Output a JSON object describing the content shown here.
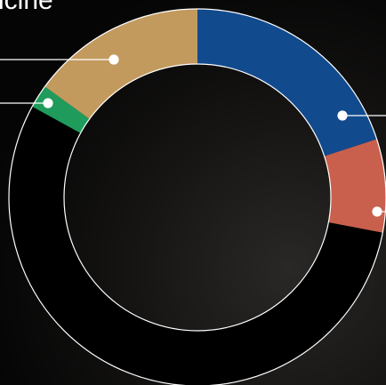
{
  "chart_data": {
    "type": "donut",
    "title": "icine",
    "values": [
      20,
      8,
      55,
      2,
      15
    ],
    "colors": [
      "#124a8e",
      "#c9604d",
      "#000000",
      "#1f9b5c",
      "#c29a5e"
    ]
  }
}
